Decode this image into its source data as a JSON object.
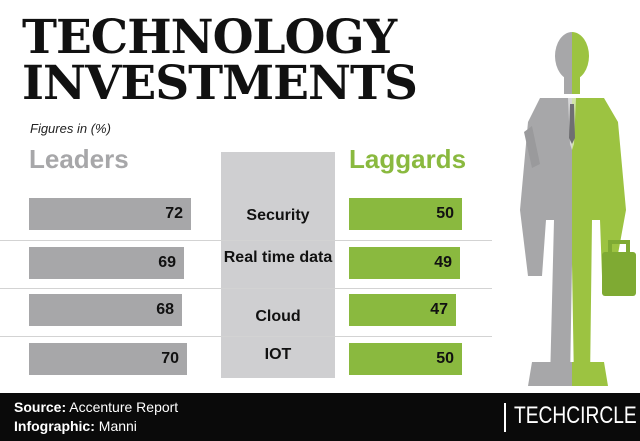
{
  "header": {
    "title_line1": "TECHNOLOGY",
    "title_line2": "INVESTMENTS",
    "subtitle": "Figures in (%)"
  },
  "chart_data": {
    "type": "bar",
    "title": "TECHNOLOGY INVESTMENTS",
    "subtitle": "Figures in (%)",
    "categories": [
      "Security",
      "Real time data",
      "Cloud",
      "IOT"
    ],
    "series": [
      {
        "name": "Leaders",
        "values": [
          72,
          69,
          68,
          70
        ],
        "color": "#a7a7a9"
      },
      {
        "name": "Laggards",
        "values": [
          50,
          49,
          47,
          50
        ],
        "color": "#8ab93f"
      }
    ],
    "xlim": [
      0,
      72
    ],
    "grid": false,
    "legend": "top"
  },
  "footer": {
    "source_label": "Source:",
    "source_value": "Accenture Report",
    "infographic_label": "Infographic:",
    "infographic_value": "Manni",
    "brand": "TECHCIRCLE"
  },
  "colors": {
    "leaders": "#a7a7a9",
    "laggards": "#8ab93f",
    "center_panel": "#cfcfd1",
    "footer_bg": "#0a0a0a"
  },
  "icons": {
    "figure": "businessman-silhouette-icon"
  }
}
